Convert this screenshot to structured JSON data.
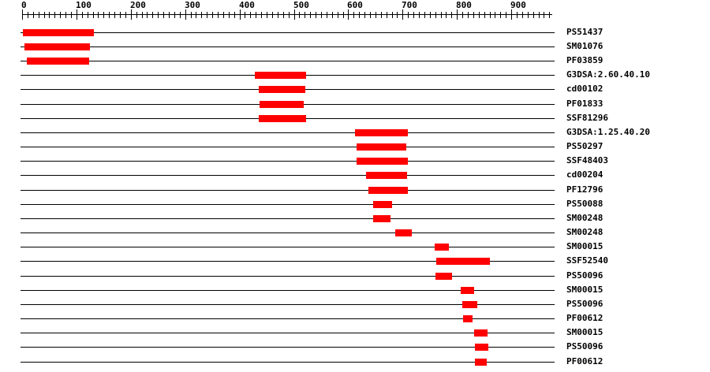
{
  "chart_data": {
    "type": "bar",
    "subtype": "protein-domain-range-plot",
    "title": "",
    "xlabel": "",
    "ylabel": "",
    "legend": "none",
    "grid": false,
    "axis": {
      "min": 0,
      "max": 975,
      "major_tick_interval": 100,
      "minor_tick_interval": 10,
      "tick_labels": [
        "0",
        "100",
        "200",
        "300",
        "400",
        "500",
        "600",
        "700",
        "800",
        "900"
      ]
    },
    "rows": [
      {
        "label": "PS51437",
        "start": 1,
        "end": 131
      },
      {
        "label": "SM01076",
        "start": 5,
        "end": 125
      },
      {
        "label": "PF03859",
        "start": 9,
        "end": 123
      },
      {
        "label": "G3DSA:2.60.40.10",
        "start": 428,
        "end": 523
      },
      {
        "label": "cd00102",
        "start": 436,
        "end": 521
      },
      {
        "label": "PF01833",
        "start": 437,
        "end": 519
      },
      {
        "label": "SSF81296",
        "start": 436,
        "end": 523
      },
      {
        "label": "G3DSA:1.25.40.20",
        "start": 613,
        "end": 710
      },
      {
        "label": "PS50297",
        "start": 615,
        "end": 707
      },
      {
        "label": "SSF48403",
        "start": 616,
        "end": 710
      },
      {
        "label": "cd00204",
        "start": 633,
        "end": 708
      },
      {
        "label": "PF12796",
        "start": 637,
        "end": 710
      },
      {
        "label": "PS50088",
        "start": 646,
        "end": 681
      },
      {
        "label": "SM00248",
        "start": 646,
        "end": 678
      },
      {
        "label": "SM00248",
        "start": 686,
        "end": 717
      },
      {
        "label": "SM00015",
        "start": 759,
        "end": 785
      },
      {
        "label": "SSF52540",
        "start": 762,
        "end": 861
      },
      {
        "label": "PS50096",
        "start": 761,
        "end": 791
      },
      {
        "label": "SM00015",
        "start": 807,
        "end": 831
      },
      {
        "label": "PS50096",
        "start": 810,
        "end": 837
      },
      {
        "label": "PF00612",
        "start": 811,
        "end": 829
      },
      {
        "label": "SM00015",
        "start": 831,
        "end": 855
      },
      {
        "label": "PS50096",
        "start": 833,
        "end": 858
      },
      {
        "label": "PF00612",
        "start": 833,
        "end": 855
      }
    ],
    "colors": {
      "bar": "#ff0000",
      "line": "#000000",
      "text": "#000000",
      "background": "#ffffff"
    }
  }
}
